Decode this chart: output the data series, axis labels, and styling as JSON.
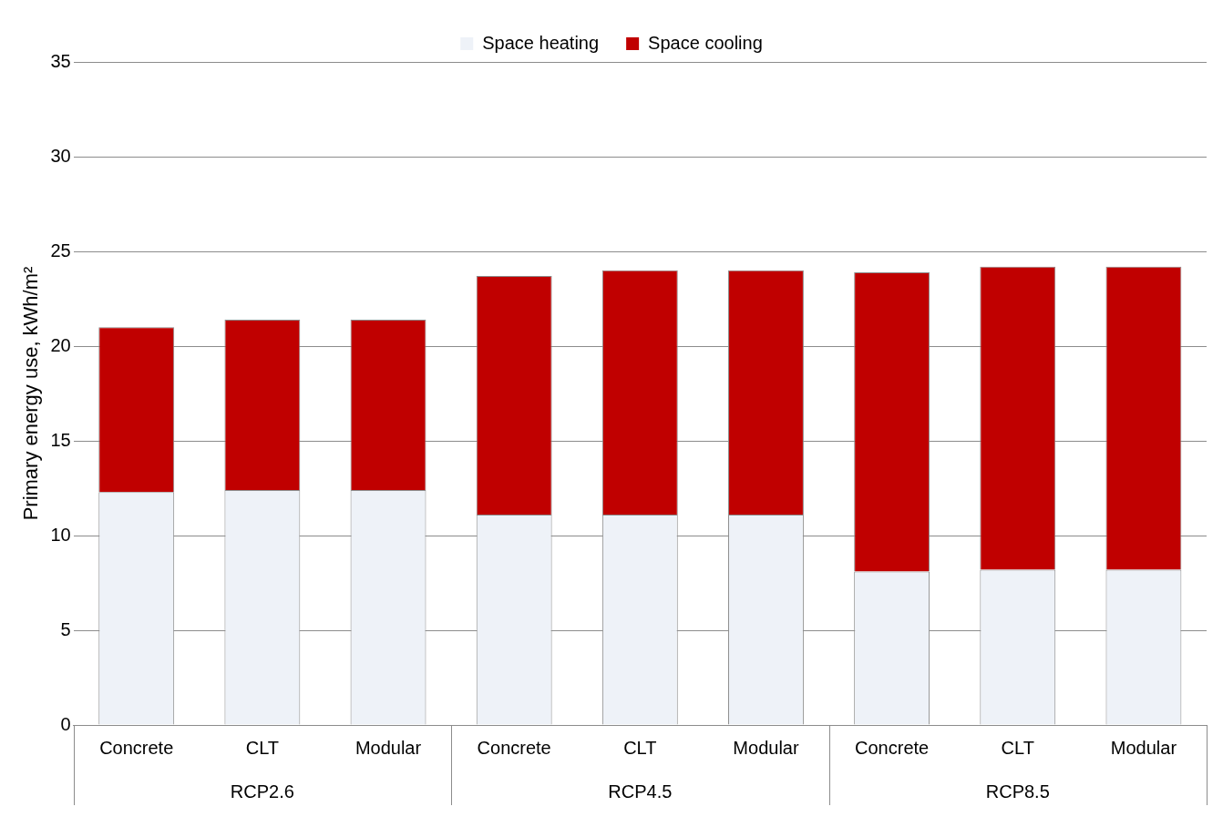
{
  "chart_data": {
    "type": "bar",
    "stacked": true,
    "ylabel": "Primary energy use, kWh/m²",
    "categories": [
      "Concrete",
      "CLT",
      "Modular",
      "Concrete",
      "CLT",
      "Modular",
      "Concrete",
      "CLT",
      "Modular"
    ],
    "series": [
      {
        "name": "Space heating",
        "color": "#eef2f8",
        "values": [
          12.3,
          12.4,
          12.4,
          11.1,
          11.1,
          11.1,
          8.1,
          8.2,
          8.2
        ]
      },
      {
        "name": "Space cooling",
        "color": "#c00000",
        "values": [
          8.7,
          9.0,
          9.0,
          12.6,
          12.9,
          12.9,
          15.8,
          16.0,
          16.0
        ]
      }
    ],
    "ylim": [
      0,
      35
    ],
    "yticks": [
      0,
      5,
      10,
      15,
      20,
      25,
      30,
      35
    ],
    "grid": "y",
    "legend": "top",
    "annotations": [
      "RCP2.6",
      "RCP4.5",
      "RCP8.5"
    ]
  }
}
